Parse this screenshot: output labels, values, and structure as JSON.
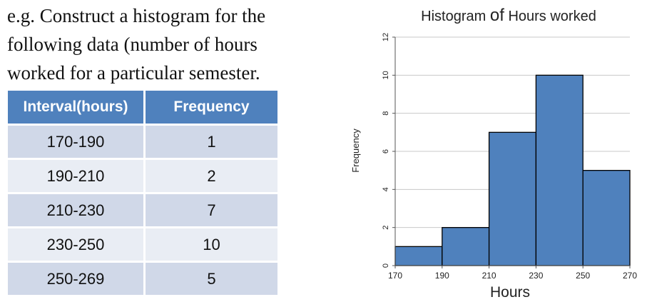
{
  "intro": {
    "line1": "e.g.  Construct a histogram for the",
    "line2": "following data (number of hours",
    "line3": "worked for a particular semester."
  },
  "table": {
    "headers": [
      "Interval(hours)",
      "Frequency"
    ],
    "rows": [
      {
        "interval": "170-190",
        "frequency": "1"
      },
      {
        "interval": "190-210",
        "frequency": "2"
      },
      {
        "interval": "210-230",
        "frequency": "7"
      },
      {
        "interval": "230-250",
        "frequency": "10"
      },
      {
        "interval": "250-269",
        "frequency": "5"
      }
    ]
  },
  "chart_data": {
    "type": "bar",
    "title_part1": "Histogram ",
    "title_part2": "of",
    "title_part3": " Hours worked",
    "xlabel": "Hours",
    "ylabel": "Frequency",
    "bin_edges": [
      170,
      190,
      210,
      230,
      250,
      270
    ],
    "values": [
      1,
      2,
      7,
      10,
      5
    ],
    "xticks": [
      170,
      190,
      210,
      230,
      250,
      270
    ],
    "yticks": [
      0,
      2,
      4,
      6,
      8,
      10,
      12
    ],
    "xlim": [
      170,
      270
    ],
    "ylim": [
      0,
      12
    ],
    "grid": true,
    "bar_color": "#4f81bd",
    "edge_color": "#000000"
  }
}
